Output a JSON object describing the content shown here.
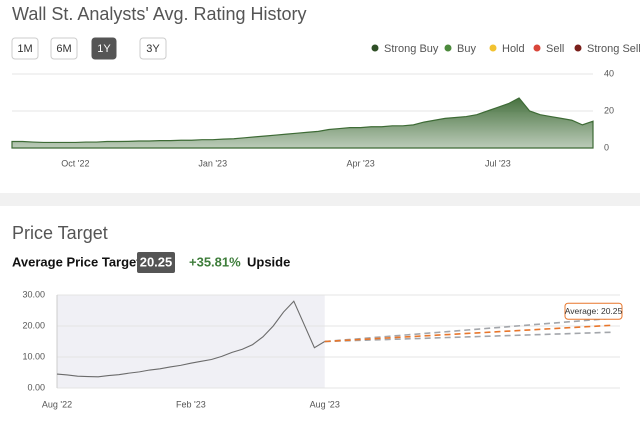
{
  "page": {
    "rating_title": "Wall St. Analysts' Avg. Rating History",
    "timeframes": [
      "1M",
      "6M",
      "1Y",
      "3Y"
    ],
    "active_timeframe": 2,
    "price_title": "Price Target",
    "avg_label": "Average Price Target",
    "avg_value": 20.25,
    "upside_value": "+35.81%",
    "upside_label": "Upside"
  },
  "chart_data": [
    {
      "type": "area",
      "color": "#3e6b36",
      "legend": [
        {
          "name": "Strong Buy",
          "color": "#2f4f26"
        },
        {
          "name": "Buy",
          "color": "#4c8a3c"
        },
        {
          "name": "Hold",
          "color": "#f2c230"
        },
        {
          "name": "Sell",
          "color": "#d9463a"
        },
        {
          "name": "Strong Sell",
          "color": "#7a1f1a"
        }
      ],
      "categories": [
        null,
        null,
        null,
        null,
        null,
        null,
        "Oct '22",
        null,
        null,
        null,
        null,
        null,
        null,
        null,
        null,
        null,
        null,
        null,
        null,
        "Jan '23",
        null,
        null,
        null,
        null,
        null,
        null,
        null,
        null,
        null,
        null,
        null,
        null,
        null,
        "Apr '23",
        null,
        null,
        null,
        null,
        null,
        null,
        null,
        null,
        null,
        null,
        null,
        null,
        "Jul '23",
        null,
        null,
        null,
        null,
        null,
        null,
        null,
        null,
        null
      ],
      "values": [
        3.5,
        3.5,
        3.2,
        3.0,
        3.0,
        3.0,
        3.0,
        3.2,
        3.2,
        3.5,
        3.5,
        3.6,
        3.8,
        3.8,
        4.0,
        4.0,
        4.2,
        4.2,
        4.5,
        4.5,
        4.8,
        5.0,
        5.5,
        6.0,
        6.5,
        7.0,
        7.5,
        8.0,
        8.5,
        9.0,
        10.0,
        10.5,
        11.0,
        11.0,
        11.5,
        11.5,
        12.0,
        12.0,
        12.5,
        14.0,
        15.0,
        16.0,
        16.5,
        17.0,
        18.0,
        20.0,
        22.0,
        24.0,
        27.0,
        20.0,
        18.0,
        17.0,
        16.0,
        15.0,
        12.5,
        14.5
      ],
      "ylim": [
        0,
        40
      ],
      "yticks": [
        0,
        20,
        40
      ],
      "grid": true
    },
    {
      "type": "line",
      "categories": [
        "Aug '22",
        null,
        null,
        null,
        null,
        null,
        null,
        null,
        null,
        null,
        null,
        null,
        null,
        "Feb '23",
        null,
        null,
        null,
        null,
        null,
        null,
        null,
        null,
        null,
        null,
        null,
        null,
        "Aug '23",
        null,
        null,
        null,
        null,
        null,
        null,
        null,
        null,
        null,
        null,
        null,
        null,
        null,
        null,
        null,
        null,
        null,
        null,
        null,
        null,
        null,
        null,
        null,
        null,
        null,
        null,
        null,
        null
      ],
      "series": [
        {
          "color": "#6b6b6b",
          "dash": false,
          "values": [
            4.5,
            4.2,
            3.8,
            3.7,
            3.6,
            4.0,
            4.3,
            4.8,
            5.2,
            5.8,
            6.2,
            6.8,
            7.3,
            8.0,
            8.6,
            9.2,
            10.2,
            11.5,
            12.5,
            14.0,
            16.5,
            20.0,
            24.5,
            28.0,
            20.5,
            13.0,
            15.0,
            null,
            null,
            null,
            null,
            null,
            null,
            null,
            null,
            null,
            null,
            null,
            null,
            null,
            null,
            null,
            null,
            null,
            null,
            null,
            null,
            null,
            null,
            null,
            null,
            null,
            null,
            null,
            null
          ]
        },
        {
          "color": "#a3a6ab",
          "dash": true,
          "values": [
            null,
            null,
            null,
            null,
            null,
            null,
            null,
            null,
            null,
            null,
            null,
            null,
            null,
            null,
            null,
            null,
            null,
            null,
            null,
            null,
            null,
            null,
            null,
            null,
            null,
            null,
            15.0,
            15.27,
            15.54,
            15.8,
            16.07,
            16.34,
            16.61,
            16.88,
            17.14,
            17.41,
            17.68,
            17.95,
            18.21,
            18.48,
            18.75,
            19.02,
            19.29,
            19.55,
            19.82,
            20.09,
            20.36,
            20.63,
            20.89,
            21.16,
            21.43,
            21.7,
            21.96,
            22.23,
            22.5
          ]
        },
        {
          "color": "#a3a6ab",
          "dash": true,
          "values": [
            null,
            null,
            null,
            null,
            null,
            null,
            null,
            null,
            null,
            null,
            null,
            null,
            null,
            null,
            null,
            null,
            null,
            null,
            null,
            null,
            null,
            null,
            null,
            null,
            null,
            null,
            15.0,
            15.11,
            15.21,
            15.32,
            15.43,
            15.54,
            15.64,
            15.75,
            15.86,
            15.96,
            16.07,
            16.18,
            16.29,
            16.39,
            16.5,
            16.61,
            16.71,
            16.82,
            16.93,
            17.04,
            17.14,
            17.25,
            17.36,
            17.46,
            17.57,
            17.68,
            17.79,
            17.89,
            18.0
          ]
        },
        {
          "color": "#e8762b",
          "dash": true,
          "values": [
            null,
            null,
            null,
            null,
            null,
            null,
            null,
            null,
            null,
            null,
            null,
            null,
            null,
            null,
            null,
            null,
            null,
            null,
            null,
            null,
            null,
            null,
            null,
            null,
            null,
            null,
            15.0,
            15.19,
            15.38,
            15.56,
            15.75,
            15.94,
            16.13,
            16.31,
            16.5,
            16.69,
            16.88,
            17.06,
            17.25,
            17.44,
            17.63,
            17.81,
            18.0,
            18.19,
            18.38,
            18.56,
            18.75,
            18.94,
            19.13,
            19.31,
            19.5,
            19.69,
            19.88,
            20.06,
            20.25
          ]
        }
      ],
      "annotation": "Average: 20.25",
      "ylim": [
        0,
        30
      ],
      "yticks": [
        {
          "value": 0,
          "label": "0.00"
        },
        {
          "value": 10,
          "label": "10.00"
        },
        {
          "value": 20,
          "label": "20.00"
        },
        {
          "value": 30,
          "label": "30.00"
        }
      ],
      "grid": true
    }
  ]
}
